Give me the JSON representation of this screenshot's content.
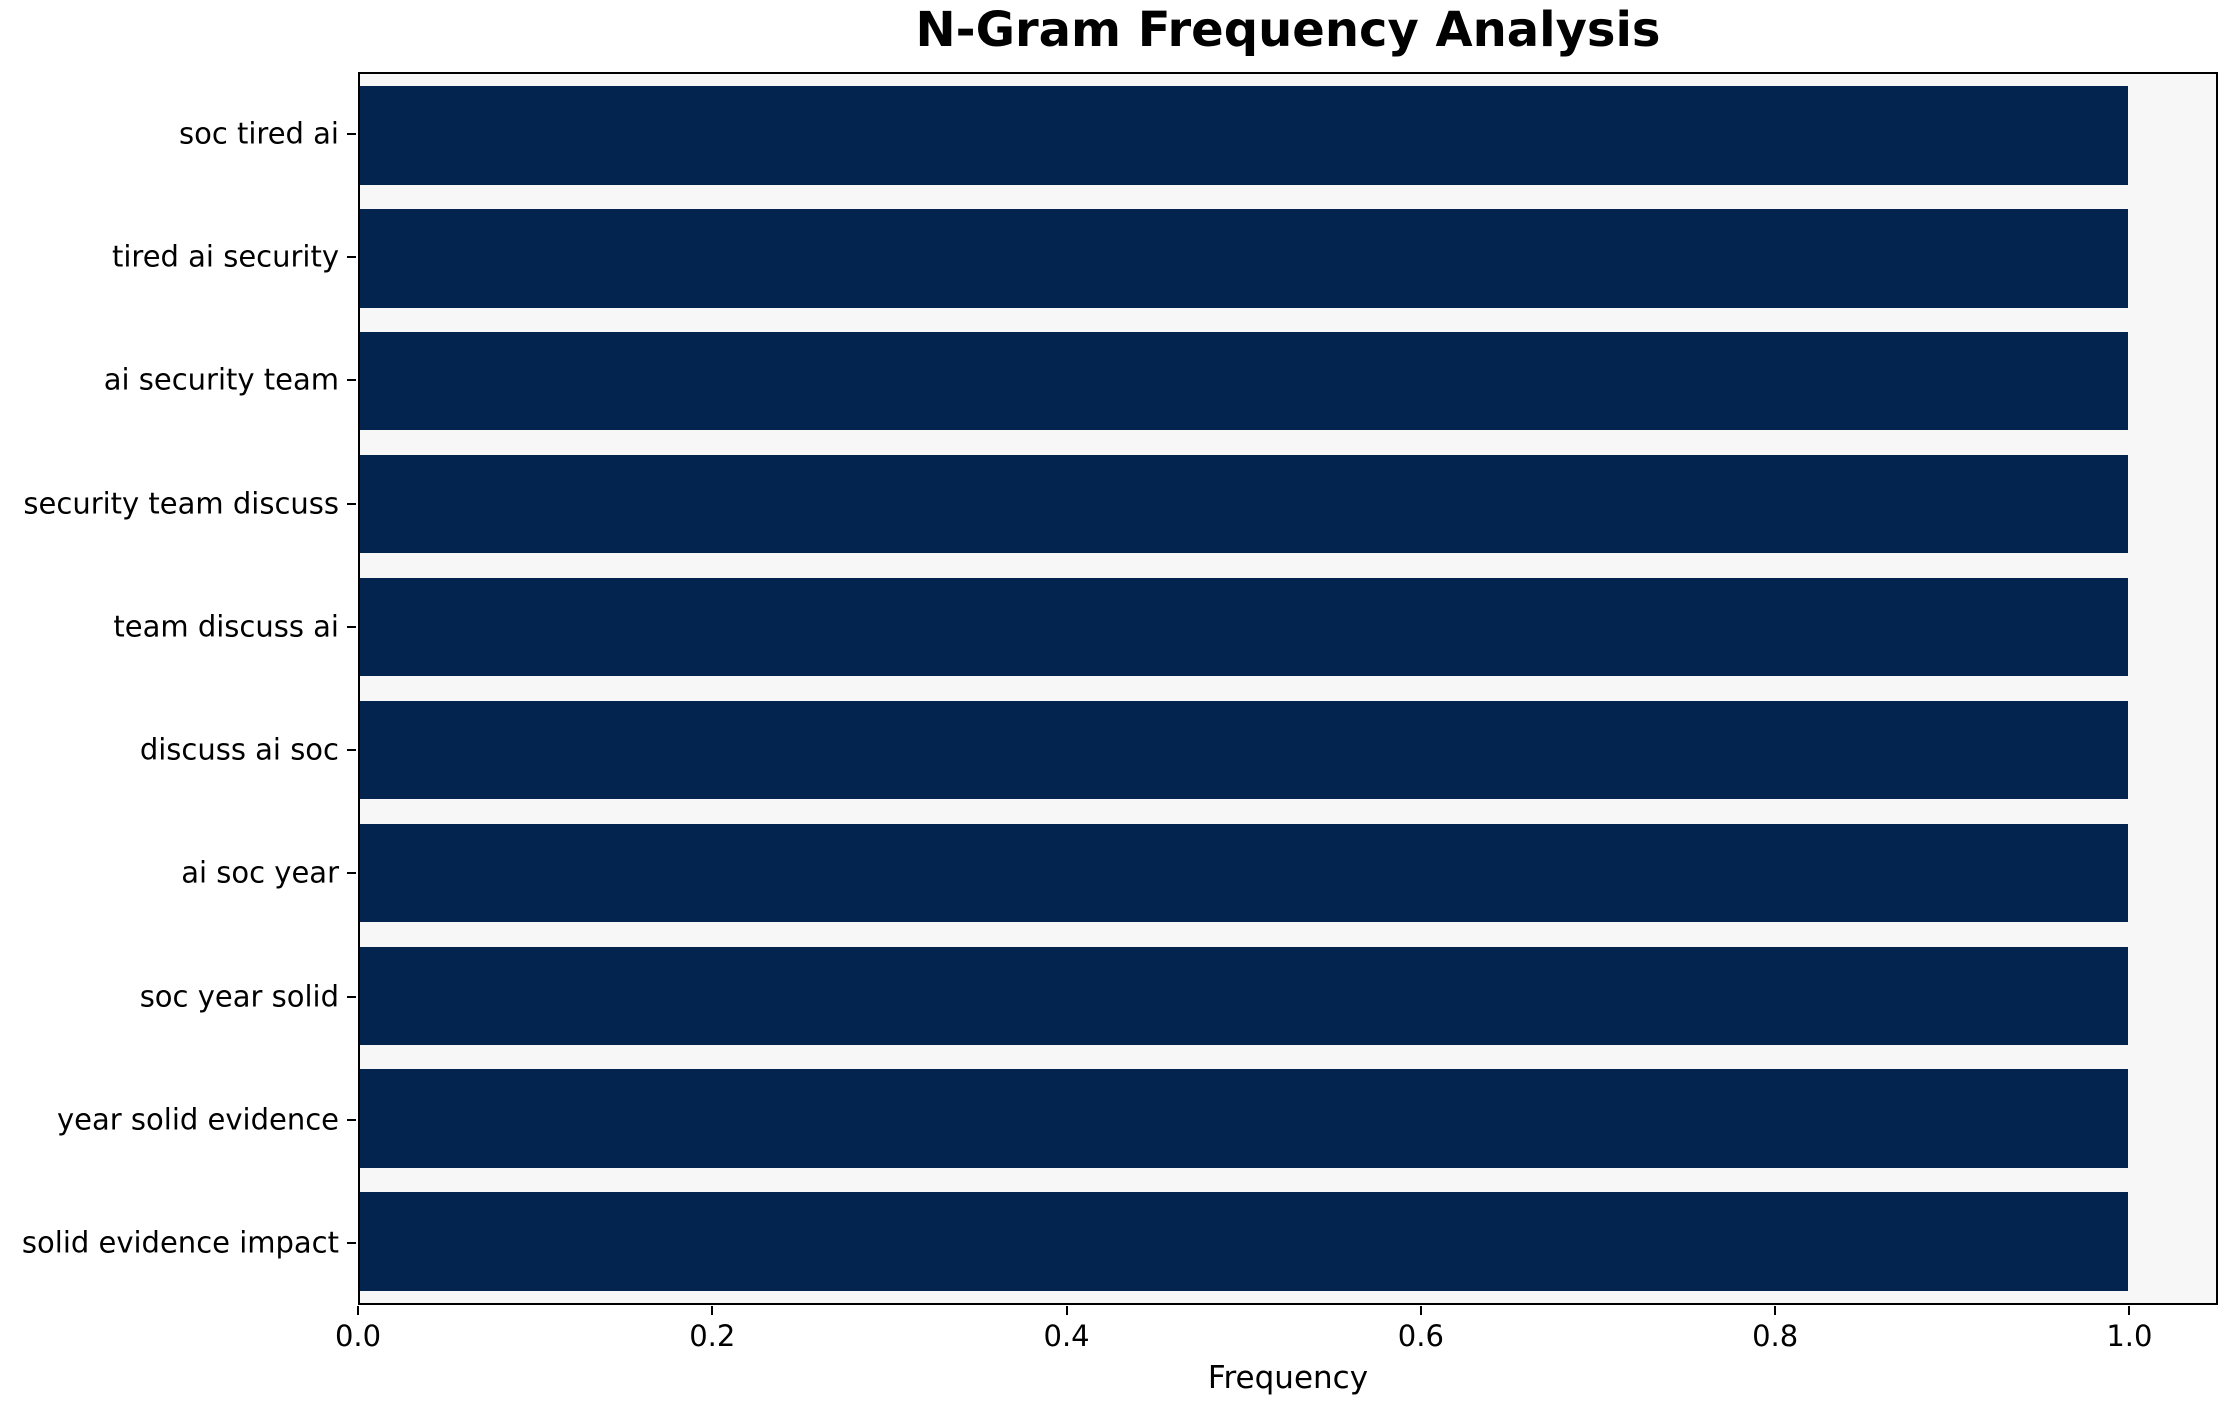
{
  "chart_data": {
    "type": "bar",
    "orientation": "horizontal",
    "title": "N-Gram Frequency Analysis",
    "xlabel": "Frequency",
    "ylabel": "",
    "categories": [
      "soc tired ai",
      "tired ai security",
      "ai security team",
      "security team discuss",
      "team discuss ai",
      "discuss ai soc",
      "ai soc year",
      "soc year solid",
      "year solid evidence",
      "solid evidence impact"
    ],
    "values": [
      1.0,
      1.0,
      1.0,
      1.0,
      1.0,
      1.0,
      1.0,
      1.0,
      1.0,
      1.0
    ],
    "x_tick_values": [
      0.0,
      0.2,
      0.4,
      0.6,
      0.8,
      1.0
    ],
    "x_tick_labels": [
      "0.0",
      "0.2",
      "0.4",
      "0.6",
      "0.8",
      "1.0"
    ],
    "xlim": [
      0,
      1.05
    ],
    "bar_thickness_fraction": 0.8,
    "grid": false,
    "legend": false,
    "colors": {
      "bar": "#02244f",
      "plot_background": "#f7f7f7",
      "figure_background": "#ffffff",
      "spine": "#000000",
      "text": "#000000"
    }
  }
}
